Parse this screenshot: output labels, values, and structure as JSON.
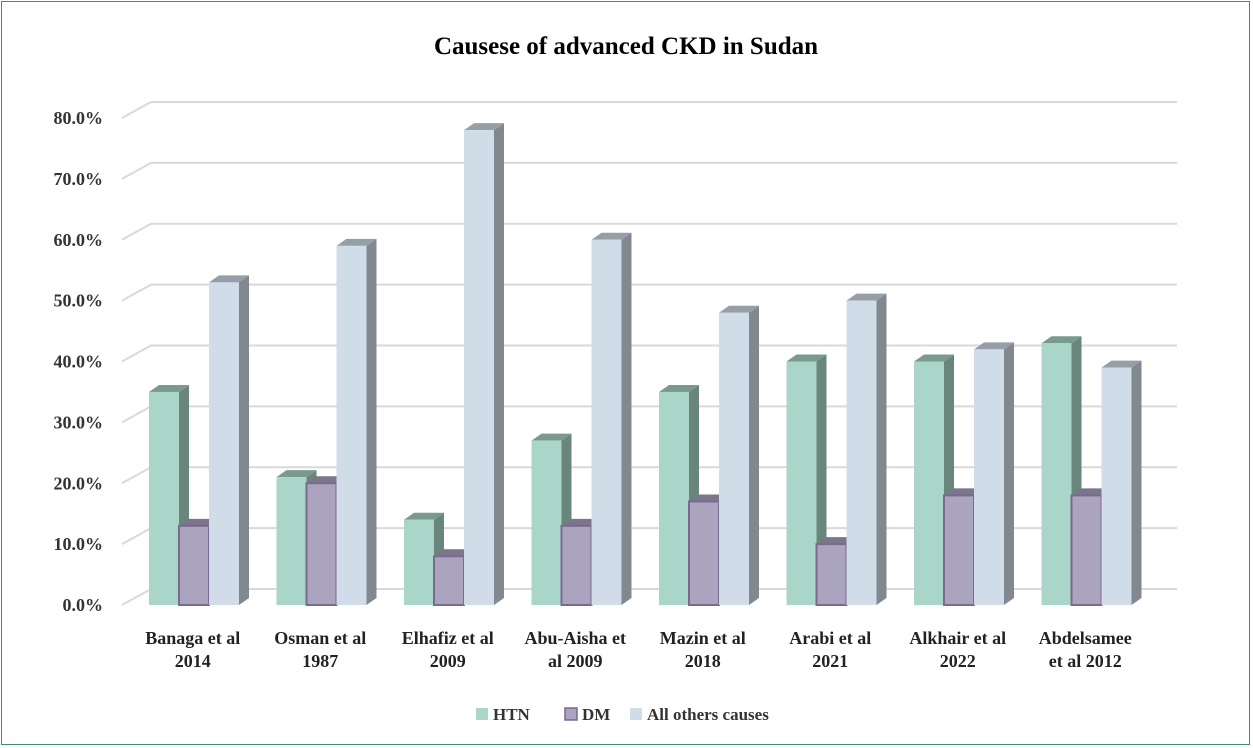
{
  "chart_data": {
    "type": "bar",
    "title": "Causese of advanced CKD in Sudan",
    "xlabel": "",
    "ylabel": "",
    "ylim": [
      0,
      0.8
    ],
    "y_ticks": [
      "0.0%",
      "10.0%",
      "20.0%",
      "30.0%",
      "40.0%",
      "50.0%",
      "60.0%",
      "70.0%",
      "80.0%"
    ],
    "categories": [
      [
        "Banaga et al",
        "2014"
      ],
      [
        "Osman et al",
        "1987"
      ],
      [
        "Elhafiz et al",
        "2009"
      ],
      [
        "Abu-Aisha et",
        "al 2009"
      ],
      [
        "Mazin et al",
        "2018"
      ],
      [
        "Arabi et al",
        "2021"
      ],
      [
        "Alkhair et al",
        "2022"
      ],
      [
        "Abdelsamee",
        "et al 2012"
      ]
    ],
    "series": [
      {
        "name": "HTN",
        "color": "#a9d6c8",
        "values": [
          0.35,
          0.21,
          0.14,
          0.27,
          0.35,
          0.4,
          0.4,
          0.43
        ]
      },
      {
        "name": "DM",
        "color": "#aba4be",
        "values": [
          0.13,
          0.2,
          0.08,
          0.13,
          0.17,
          0.1,
          0.18,
          0.18
        ]
      },
      {
        "name": "All others causes",
        "color": "#d0dce8",
        "values": [
          0.53,
          0.59,
          0.78,
          0.6,
          0.48,
          0.5,
          0.42,
          0.39
        ]
      }
    ],
    "grid": true,
    "legend_position": "bottom"
  }
}
